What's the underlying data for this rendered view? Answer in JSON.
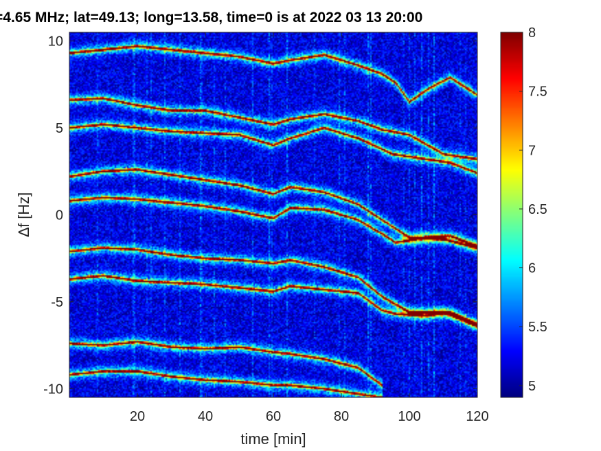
{
  "chart_data": {
    "type": "heatmap",
    "title": "=4.65 MHz;  lat=49.13; long=13.58, time=0 is at 2022 03 13 20:00",
    "xlabel": "time [min]",
    "ylabel": "∆f [Hz]",
    "xlim": [
      0,
      120
    ],
    "ylim": [
      -10.5,
      10.5
    ],
    "xticks": [
      20,
      40,
      60,
      80,
      100,
      120
    ],
    "xtick_labels": [
      "20",
      "40",
      "60",
      "80",
      "100",
      "120"
    ],
    "yticks": [
      10,
      5,
      0,
      -5,
      -10
    ],
    "ytick_labels": [
      "10",
      "5",
      "0",
      "-5",
      "-10"
    ],
    "colormap": "jet",
    "clim": [
      4.9,
      8.0
    ],
    "colorbar_ticks": [
      8,
      7.5,
      7,
      6.5,
      6,
      5.5,
      5
    ],
    "colorbar_tick_labels": [
      "8",
      "7.5",
      "7",
      "6.5",
      "6",
      "5.5",
      "5"
    ],
    "grid": false,
    "background_level": 5.2,
    "traces": [
      {
        "x": [
          0,
          10,
          20,
          30,
          40,
          50,
          60,
          65,
          75,
          85,
          92,
          96,
          100,
          106,
          112,
          120
        ],
        "y": [
          9.3,
          9.5,
          9.7,
          9.5,
          9.3,
          9.1,
          8.7,
          8.9,
          9.2,
          8.6,
          8.1,
          7.6,
          6.5,
          7.3,
          7.9,
          6.9
        ]
      },
      {
        "x": [
          0,
          10,
          20,
          30,
          40,
          50,
          60,
          65,
          75,
          85,
          92,
          100,
          110,
          120
        ],
        "y": [
          6.6,
          6.7,
          6.3,
          6.0,
          6.0,
          5.6,
          5.2,
          5.5,
          5.8,
          5.4,
          4.9,
          4.6,
          3.5,
          3.2
        ]
      },
      {
        "x": [
          0,
          10,
          20,
          30,
          40,
          50,
          60,
          65,
          75,
          85,
          95,
          105,
          112,
          120
        ],
        "y": [
          5.0,
          5.2,
          5.0,
          4.8,
          4.7,
          4.6,
          4.0,
          4.4,
          5.0,
          4.4,
          3.5,
          3.2,
          3.0,
          2.4
        ]
      },
      {
        "x": [
          0,
          10,
          20,
          30,
          40,
          50,
          60,
          65,
          75,
          85,
          92,
          100,
          110,
          120
        ],
        "y": [
          2.2,
          2.5,
          2.6,
          2.3,
          2.0,
          1.7,
          1.2,
          1.6,
          1.3,
          0.6,
          -0.3,
          -1.3,
          -1.4,
          -1.9
        ]
      },
      {
        "x": [
          0,
          10,
          20,
          30,
          40,
          50,
          60,
          65,
          75,
          85,
          92,
          96,
          105,
          112,
          120
        ],
        "y": [
          0.8,
          1.0,
          0.9,
          0.7,
          0.5,
          0.2,
          -0.2,
          0.4,
          0.3,
          -0.3,
          -1.1,
          -1.6,
          -1.3,
          -1.2,
          -1.8
        ]
      },
      {
        "x": [
          0,
          10,
          20,
          30,
          40,
          50,
          60,
          65,
          75,
          85,
          92,
          100,
          110,
          120
        ],
        "y": [
          -2.1,
          -1.9,
          -2.0,
          -2.3,
          -2.5,
          -2.6,
          -2.8,
          -2.6,
          -3.0,
          -3.6,
          -4.7,
          -5.6,
          -5.6,
          -6.4
        ]
      },
      {
        "x": [
          0,
          10,
          20,
          30,
          40,
          50,
          60,
          65,
          75,
          85,
          92,
          96,
          105,
          112,
          120
        ],
        "y": [
          -3.7,
          -3.5,
          -3.8,
          -3.9,
          -4.0,
          -4.2,
          -4.4,
          -4.1,
          -4.3,
          -4.5,
          -5.5,
          -5.7,
          -5.8,
          -5.6,
          -6.3
        ]
      },
      {
        "x": [
          0,
          10,
          20,
          30,
          40,
          50,
          60,
          65,
          75,
          85,
          92
        ],
        "y": [
          -7.4,
          -7.5,
          -7.3,
          -7.6,
          -7.7,
          -7.6,
          -7.9,
          -8.0,
          -8.3,
          -8.8,
          -9.8
        ]
      },
      {
        "x": [
          0,
          10,
          20,
          30,
          40,
          50,
          60,
          65,
          75,
          85,
          92
        ],
        "y": [
          -9.2,
          -9.0,
          -9.0,
          -9.3,
          -9.5,
          -9.6,
          -9.8,
          -9.8,
          -10.0,
          -10.3,
          -10.5
        ]
      }
    ]
  }
}
